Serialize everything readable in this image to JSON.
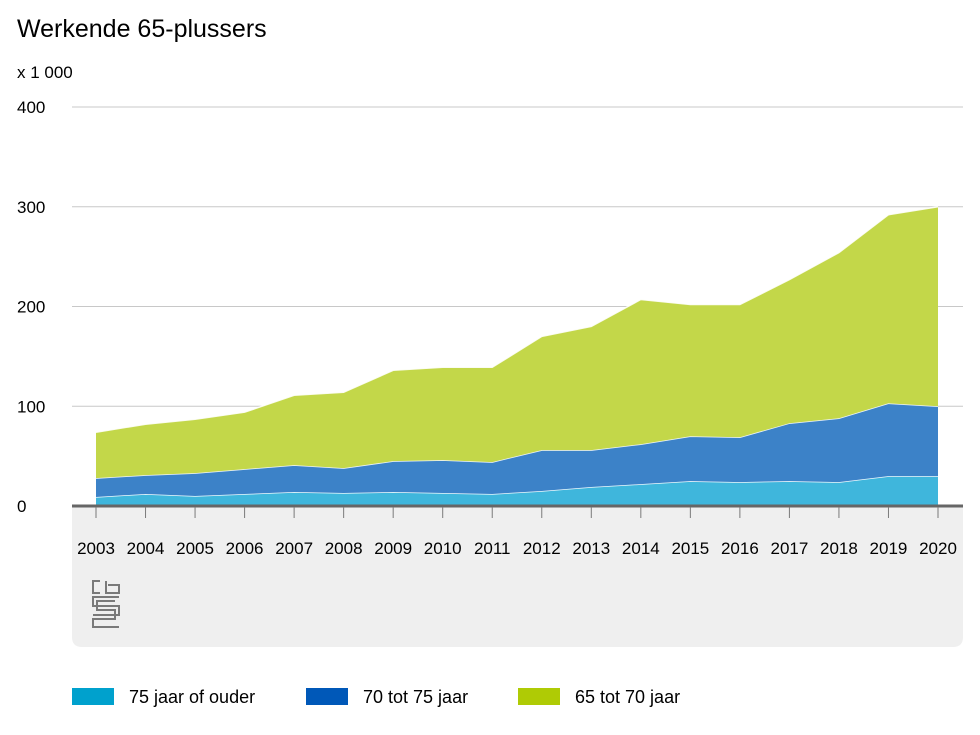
{
  "chart_data": {
    "type": "area",
    "stacked": true,
    "title": "Werkende 65-plussers",
    "unit_label": "x 1 000",
    "x": [
      "2003",
      "2004",
      "2005",
      "2006",
      "2007",
      "2008",
      "2009",
      "2010",
      "2011",
      "2012",
      "2013",
      "2014",
      "2015",
      "2016",
      "2017",
      "2018",
      "2019",
      "2020"
    ],
    "ylim": [
      0,
      400
    ],
    "yticks": [
      {
        "value": 0,
        "label": "0"
      },
      {
        "value": 100,
        "label": "100"
      },
      {
        "value": 200,
        "label": "200"
      },
      {
        "value": 300,
        "label": "300"
      },
      {
        "value": 400,
        "label": "400"
      }
    ],
    "grid": true,
    "legend_position": "bottom",
    "series": [
      {
        "name": "75 jaar of ouder",
        "color": "#3fb6dc",
        "legend_color": "#00a1cd",
        "values": [
          9,
          12,
          10,
          12,
          14,
          13,
          14,
          13,
          12,
          15,
          19,
          22,
          25,
          24,
          25,
          24,
          30,
          30
        ]
      },
      {
        "name": "70 tot 75 jaar",
        "color": "#3c82c8",
        "legend_color": "#0058b8",
        "values": [
          19,
          19,
          23,
          25,
          27,
          25,
          31,
          33,
          32,
          41,
          37,
          40,
          45,
          45,
          58,
          64,
          73,
          70
        ]
      },
      {
        "name": "65 tot 70 jaar",
        "color": "#c3d749",
        "legend_color": "#afcb05",
        "values": [
          46,
          51,
          54,
          57,
          70,
          76,
          91,
          93,
          95,
          114,
          124,
          145,
          132,
          133,
          144,
          166,
          189,
          200
        ]
      }
    ]
  }
}
